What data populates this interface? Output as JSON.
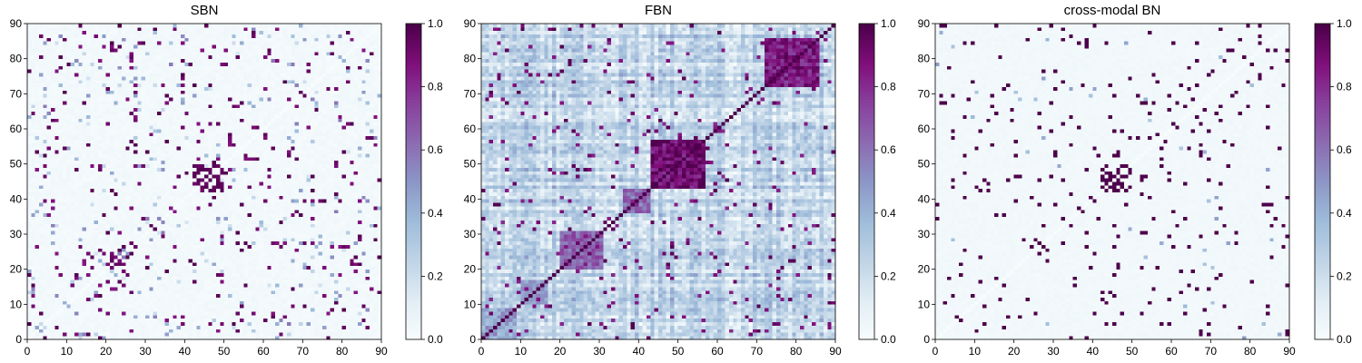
{
  "colors": {
    "colormap": [
      "#f7fcfd",
      "#e0ecf4",
      "#bfd3e6",
      "#9ebcda",
      "#8c96c6",
      "#8c6bb1",
      "#88419d",
      "#810f7c",
      "#4d004b"
    ]
  },
  "chart_data": [
    {
      "type": "heatmap",
      "variant": "SBN",
      "title": "SBN",
      "xlabel": "",
      "ylabel": "",
      "n": 90,
      "xlim": [
        0,
        90
      ],
      "ylim": [
        0,
        90
      ],
      "xticks": [
        "0",
        "10",
        "20",
        "30",
        "40",
        "50",
        "60",
        "70",
        "80",
        "90"
      ],
      "yticks": [
        "0",
        "10",
        "20",
        "30",
        "40",
        "50",
        "60",
        "70",
        "80",
        "90"
      ],
      "colorbar": {
        "vmin": 0,
        "vmax": 1,
        "ticks": [
          "0.0",
          "0.2",
          "0.4",
          "0.6",
          "0.8",
          "1.0"
        ]
      },
      "description": "sparse symmetric matrix, mostly near 0 with scattered strong connections (~1.0)"
    },
    {
      "type": "heatmap",
      "variant": "FBN",
      "title": "FBN",
      "xlabel": "",
      "ylabel": "",
      "n": 90,
      "xlim": [
        0,
        90
      ],
      "ylim": [
        0,
        90
      ],
      "xticks": [
        "0",
        "10",
        "20",
        "30",
        "40",
        "50",
        "60",
        "70",
        "80",
        "90"
      ],
      "yticks": [
        "0",
        "10",
        "20",
        "30",
        "40",
        "50",
        "60",
        "70",
        "80",
        "90"
      ],
      "colorbar": {
        "vmin": 0,
        "vmax": 1,
        "ticks": [
          "0.0",
          "0.2",
          "0.4",
          "0.6",
          "0.8",
          "1.0"
        ]
      },
      "description": "dense symmetric matrix with strong blocks near (43-56,43-56), (72-85,72-85), (20-30,20-30) and diagonal 1.0"
    },
    {
      "type": "heatmap",
      "variant": "CROSS",
      "title": "cross-modal BN",
      "xlabel": "",
      "ylabel": "",
      "n": 90,
      "xlim": [
        0,
        90
      ],
      "ylim": [
        0,
        90
      ],
      "xticks": [
        "0",
        "10",
        "20",
        "30",
        "40",
        "50",
        "60",
        "70",
        "80",
        "90"
      ],
      "yticks": [
        "0",
        "10",
        "20",
        "30",
        "40",
        "50",
        "60",
        "70",
        "80",
        "90"
      ],
      "colorbar": {
        "vmin": 0,
        "vmax": 1,
        "ticks": [
          "0.0",
          "0.2",
          "0.4",
          "0.6",
          "0.8",
          "1.0"
        ]
      },
      "description": "sparse symmetric matrix, near 0 background with scattered binary-like strong connections"
    }
  ]
}
